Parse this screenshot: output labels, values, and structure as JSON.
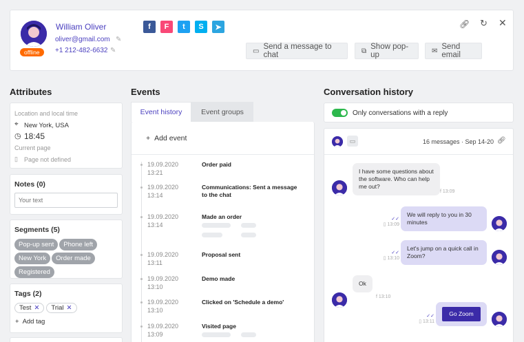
{
  "header": {
    "name": "William Oliver",
    "status": "offline",
    "email": "oliver@gmail.com",
    "phone": "+1 212-482-6632",
    "socials": [
      {
        "icon": "facebook-icon",
        "glyph": "f",
        "color": "#3b5998"
      },
      {
        "icon": "foursquare-icon",
        "glyph": "F",
        "color": "#f94877"
      },
      {
        "icon": "twitter-icon",
        "glyph": "t",
        "color": "#1da1f2"
      },
      {
        "icon": "skype-icon",
        "glyph": "S",
        "color": "#00aff0"
      },
      {
        "icon": "telegram-icon",
        "glyph": "➤",
        "color": "#2ca5e0"
      }
    ],
    "send_message_label": "Send a message to chat",
    "show_popup_label": "Show pop-up",
    "send_email_label": "Send email"
  },
  "attributes": {
    "title": "Attributes",
    "location_label": "Location and local time",
    "location": "New York, USA",
    "time": "18:45",
    "current_page_label": "Current page",
    "current_page": "Page not defined"
  },
  "notes": {
    "title": "Notes (0)",
    "placeholder": "Your text"
  },
  "segments": {
    "title": "Segments (5)",
    "items": [
      "Pop-up sent",
      "Phone left",
      "New York",
      "Order made",
      "Registered"
    ]
  },
  "tags": {
    "title": "Tags (2)",
    "items": [
      "Test",
      "Trial"
    ],
    "add_label": "Add tag"
  },
  "events": {
    "title": "Events",
    "tabs": [
      "Event history",
      "Event groups"
    ],
    "add_label": "Add event",
    "items": [
      {
        "date": "19.09.2020",
        "time": "13:21",
        "title": "Order paid"
      },
      {
        "date": "19.09.2020",
        "time": "13:14",
        "title": "Communications: Sent a message to the chat"
      },
      {
        "date": "19.09.2020",
        "time": "13:14",
        "title": "Made an order"
      },
      {
        "date": "19.09.2020",
        "time": "13:11",
        "title": "Proposal sent"
      },
      {
        "date": "19.09.2020",
        "time": "13:10",
        "title": "Demo made"
      },
      {
        "date": "19.09.2020",
        "time": "13:10",
        "title": "Clicked on 'Schedule a demo'"
      },
      {
        "date": "19.09.2020",
        "time": "13:09",
        "title": "Visited page"
      }
    ]
  },
  "conversation": {
    "title": "Conversation history",
    "toggle_label": "Only conversations with a reply",
    "toggle_on": true,
    "summary": "16 messages · Sep 14-20",
    "messages": [
      {
        "dir": "in",
        "text": "I have some questions about the software. Who can help me out?",
        "time": "13:09"
      },
      {
        "dir": "out",
        "text": "We will reply to you in 30 minutes",
        "time": "13:09"
      },
      {
        "dir": "out",
        "text": "Let's jump on a quick call in Zoom?",
        "time": "13:10"
      },
      {
        "dir": "in",
        "text": "Ok",
        "time": "13:10"
      },
      {
        "dir": "out",
        "text": "Go Zoom",
        "time": "13:11"
      }
    ]
  },
  "colors": {
    "accent": "#3b2ba8",
    "status_offline": "#ff6a00",
    "toggle": "#2db84d",
    "link": "#4a3fbf"
  }
}
